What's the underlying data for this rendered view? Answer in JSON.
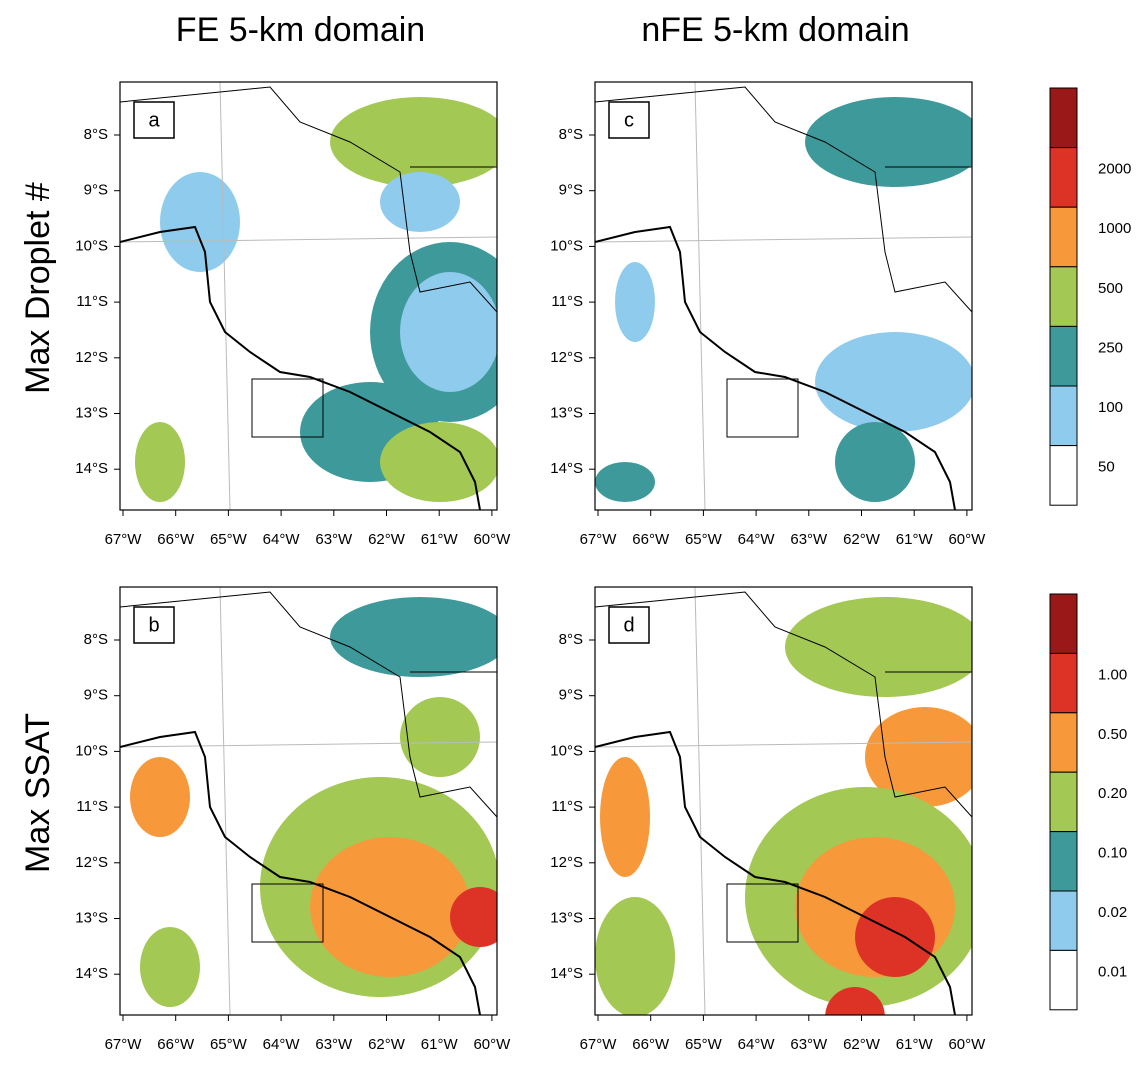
{
  "columns": [
    "FE 5-km domain",
    "nFE 5-km domain"
  ],
  "rows": [
    {
      "label": "Max Droplet #",
      "colorbar": {
        "labels": [
          "2000",
          "1000",
          "500",
          "250",
          "100",
          "50"
        ],
        "colors": [
          "#9a1818",
          "#dd3327",
          "#f7993a",
          "#a3c853",
          "#3e9a9a",
          "#8ecbec",
          "#ffffff"
        ]
      },
      "panels": [
        "a",
        "c"
      ]
    },
    {
      "label": "Max SSAT",
      "colorbar": {
        "labels": [
          "1.00",
          "0.50",
          "0.20",
          "0.10",
          "0.02",
          "0.01"
        ],
        "colors": [
          "#9a1818",
          "#dd3327",
          "#f7993a",
          "#a3c853",
          "#3e9a9a",
          "#8ecbec",
          "#ffffff"
        ]
      },
      "panels": [
        "b",
        "d"
      ]
    }
  ],
  "x_tick_labels": [
    "67°W",
    "66°W",
    "65°W",
    "64°W",
    "63°W",
    "62°W",
    "61°W",
    "60°W"
  ],
  "y_tick_labels": [
    "8°S",
    "9°S",
    "10°S",
    "11°S",
    "12°S",
    "13°S",
    "14°S"
  ]
}
